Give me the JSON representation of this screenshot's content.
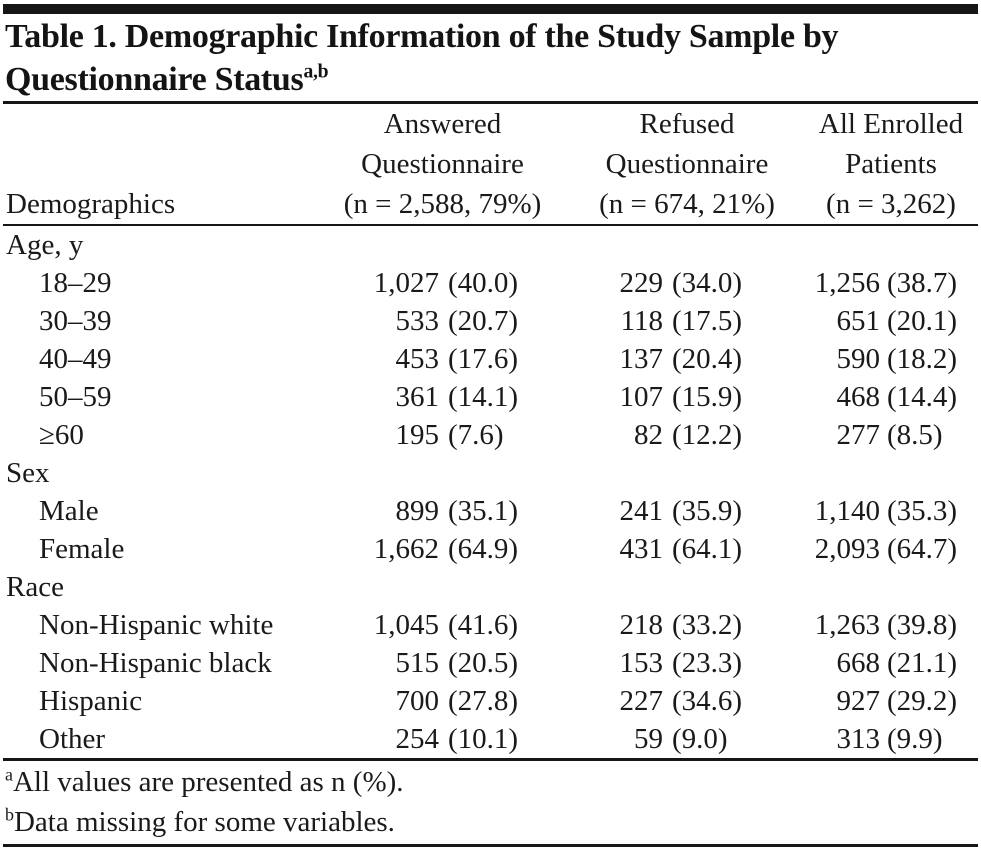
{
  "colors": {
    "text": "#1a1a1a",
    "rule": "#161616",
    "background": "#ffffff"
  },
  "title": {
    "line1": "Table 1. Demographic Information of the Study Sample by",
    "line2": "Questionnaire Status",
    "superscript": "a,b"
  },
  "header": {
    "row_label": "Demographics",
    "columns": [
      {
        "line1": "Answered",
        "line2": "Questionnaire",
        "line3": "(n = 2,588, 79%)"
      },
      {
        "line1": "Refused",
        "line2": "Questionnaire",
        "line3": "(n = 674, 21%)"
      },
      {
        "line1": "All Enrolled",
        "line2": "Patients",
        "line3": "(n = 3,262)"
      }
    ]
  },
  "sections": [
    {
      "label": "Age, y",
      "rows": [
        {
          "label": "18–29",
          "answered": {
            "n": "1,027",
            "pct": "(40.0)"
          },
          "refused": {
            "n": "229",
            "pct": "(34.0)"
          },
          "all": {
            "n": "1,256",
            "pct": "(38.7)"
          }
        },
        {
          "label": "30–39",
          "answered": {
            "n": "533",
            "pct": "(20.7)"
          },
          "refused": {
            "n": "118",
            "pct": "(17.5)"
          },
          "all": {
            "n": "651",
            "pct": "(20.1)"
          }
        },
        {
          "label": "40–49",
          "answered": {
            "n": "453",
            "pct": "(17.6)"
          },
          "refused": {
            "n": "137",
            "pct": "(20.4)"
          },
          "all": {
            "n": "590",
            "pct": "(18.2)"
          }
        },
        {
          "label": "50–59",
          "answered": {
            "n": "361",
            "pct": "(14.1)"
          },
          "refused": {
            "n": "107",
            "pct": "(15.9)"
          },
          "all": {
            "n": "468",
            "pct": "(14.4)"
          }
        },
        {
          "label": "≥60",
          "answered": {
            "n": "195",
            "pct": "(7.6)"
          },
          "refused": {
            "n": "82",
            "pct": "(12.2)"
          },
          "all": {
            "n": "277",
            "pct": "(8.5)"
          }
        }
      ]
    },
    {
      "label": "Sex",
      "rows": [
        {
          "label": "Male",
          "answered": {
            "n": "899",
            "pct": "(35.1)"
          },
          "refused": {
            "n": "241",
            "pct": "(35.9)"
          },
          "all": {
            "n": "1,140",
            "pct": "(35.3)"
          }
        },
        {
          "label": "Female",
          "answered": {
            "n": "1,662",
            "pct": "(64.9)"
          },
          "refused": {
            "n": "431",
            "pct": "(64.1)"
          },
          "all": {
            "n": "2,093",
            "pct": "(64.7)"
          }
        }
      ]
    },
    {
      "label": "Race",
      "rows": [
        {
          "label": "Non-Hispanic white",
          "answered": {
            "n": "1,045",
            "pct": "(41.6)"
          },
          "refused": {
            "n": "218",
            "pct": "(33.2)"
          },
          "all": {
            "n": "1,263",
            "pct": "(39.8)"
          }
        },
        {
          "label": "Non-Hispanic black",
          "answered": {
            "n": "515",
            "pct": "(20.5)"
          },
          "refused": {
            "n": "153",
            "pct": "(23.3)"
          },
          "all": {
            "n": "668",
            "pct": "(21.1)"
          }
        },
        {
          "label": "Hispanic",
          "answered": {
            "n": "700",
            "pct": "(27.8)"
          },
          "refused": {
            "n": "227",
            "pct": "(34.6)"
          },
          "all": {
            "n": "927",
            "pct": "(29.2)"
          }
        },
        {
          "label": "Other",
          "answered": {
            "n": "254",
            "pct": "(10.1)"
          },
          "refused": {
            "n": "59",
            "pct": "(9.0)"
          },
          "all": {
            "n": "313",
            "pct": "(9.9)"
          }
        }
      ]
    }
  ],
  "footnotes": [
    {
      "marker": "a",
      "text": "All values are presented as n (%)."
    },
    {
      "marker": "b",
      "text": "Data missing for some variables."
    }
  ]
}
